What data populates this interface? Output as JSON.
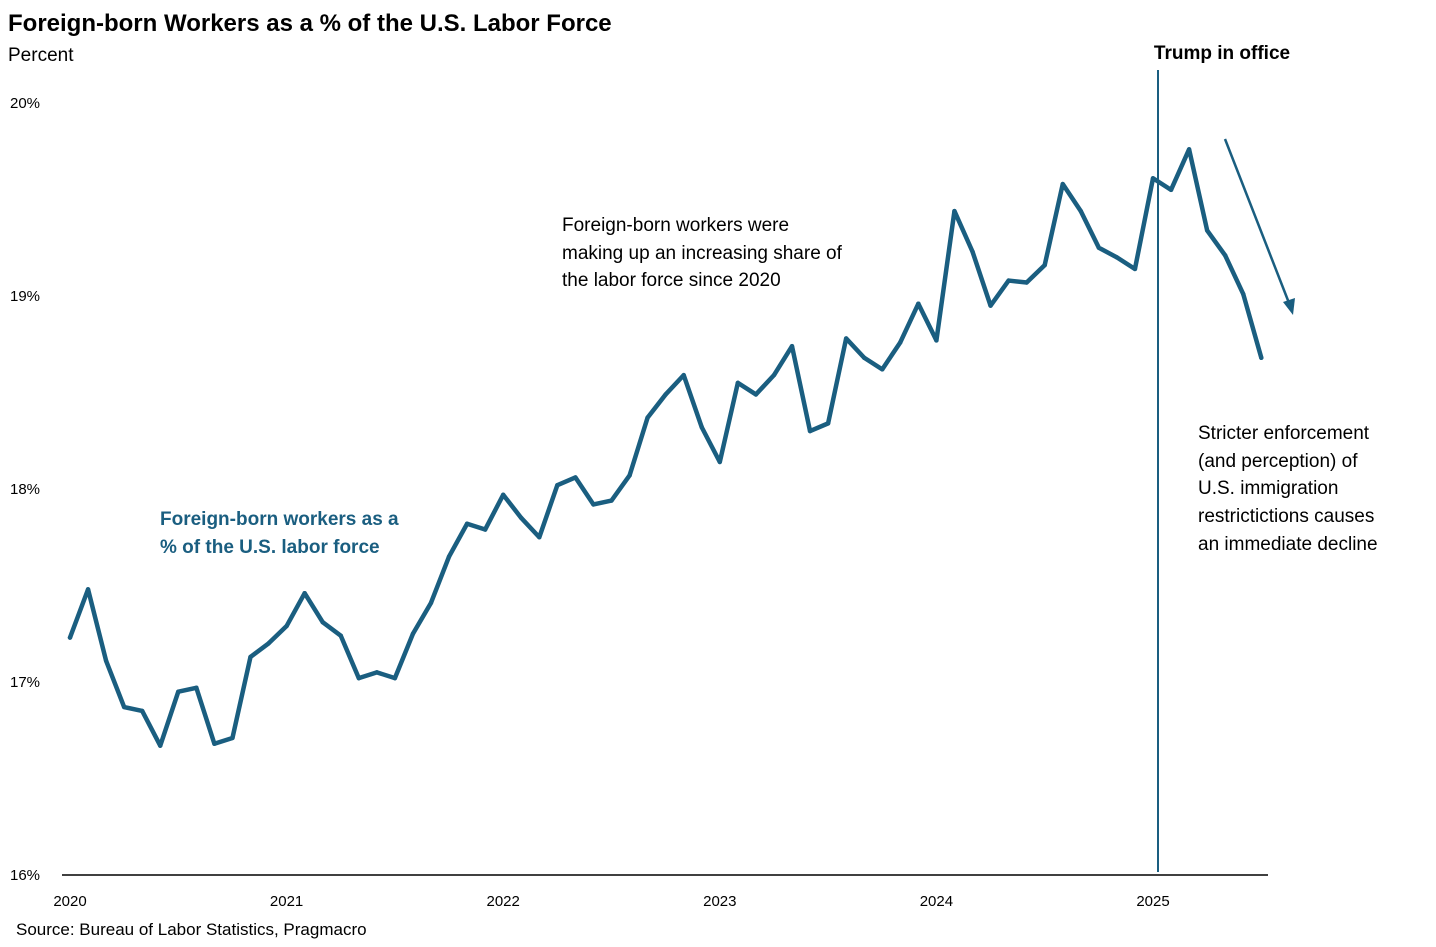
{
  "chart_data": {
    "type": "line",
    "title": "Foreign-born Workers as a % of the U.S. Labor Force",
    "ylabel": "Percent",
    "xlabel": "",
    "ylim": [
      16,
      20
    ],
    "yticks": [
      16,
      17,
      18,
      19,
      20
    ],
    "ytick_labels": [
      "16%",
      "17%",
      "18%",
      "19%",
      "20%"
    ],
    "xtick_labels": [
      "2020",
      "2021",
      "2022",
      "2023",
      "2024",
      "2025"
    ],
    "grid": false,
    "start": "2020-01",
    "frequency": "monthly",
    "series": [
      {
        "name": "Foreign-born workers as a % of the U.S. labor force",
        "color": "#1a5e80",
        "values": [
          17.23,
          17.48,
          17.11,
          16.87,
          16.85,
          16.67,
          16.95,
          16.97,
          16.68,
          16.71,
          17.13,
          17.2,
          17.29,
          17.46,
          17.31,
          17.24,
          17.02,
          17.05,
          17.02,
          17.25,
          17.41,
          17.65,
          17.82,
          17.79,
          17.97,
          17.85,
          17.75,
          18.02,
          18.06,
          17.92,
          17.94,
          18.07,
          18.37,
          18.49,
          18.59,
          18.32,
          18.14,
          18.55,
          18.49,
          18.59,
          18.74,
          18.3,
          18.34,
          18.78,
          18.68,
          18.62,
          18.76,
          18.96,
          18.77,
          19.44,
          19.23,
          18.95,
          19.08,
          19.07,
          19.16,
          19.58,
          19.44,
          19.25,
          19.2,
          19.14,
          19.61,
          19.55,
          19.76,
          19.34,
          19.21,
          19.01,
          18.68
        ]
      }
    ],
    "annotations": {
      "series_label": [
        "Foreign-born workers as a",
        "% of the U.S. labor force"
      ],
      "middle_note": [
        "Foreign-born workers were",
        "making up an increasing share of",
        "the labor force since 2020"
      ],
      "trump_label": "Trump in office",
      "trump_start": "2025-01",
      "right_note": [
        "Stricter enforcement",
        "(and perception) of",
        "U.S. immigration",
        "restrictictions causes",
        "an immediate decline"
      ]
    },
    "source": "Source: Bureau of Labor Statistics, Pragmacro"
  }
}
